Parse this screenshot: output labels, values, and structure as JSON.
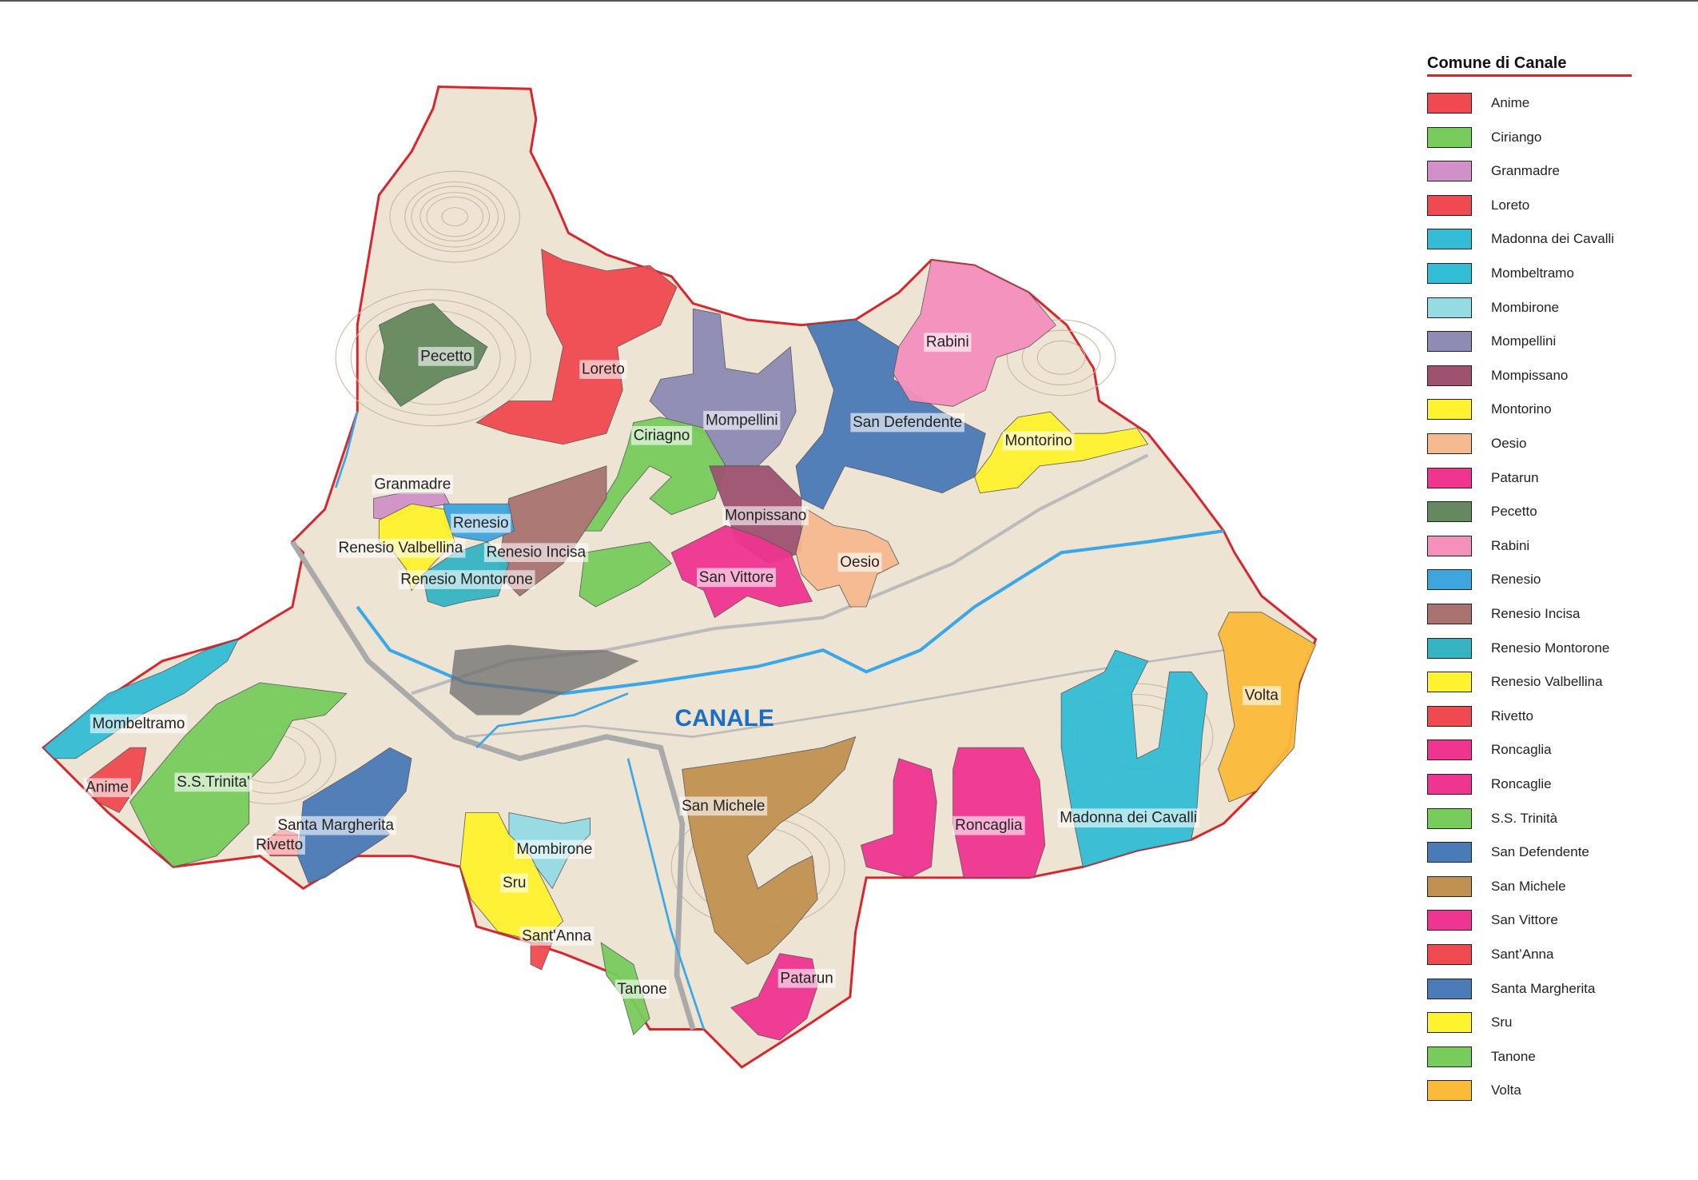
{
  "legend": {
    "title": "Comune di Canale",
    "items": [
      {
        "label": "Anime",
        "color": "#f04a50"
      },
      {
        "label": "Ciriango",
        "color": "#78cc5c"
      },
      {
        "label": "Granmadre",
        "color": "#d191c8"
      },
      {
        "label": "Loreto",
        "color": "#f04a50"
      },
      {
        "label": "Madonna dei Cavalli",
        "color": "#33bcd6"
      },
      {
        "label": "Mombeltramo",
        "color": "#33bcd6"
      },
      {
        "label": "Mombirone",
        "color": "#94dbe3"
      },
      {
        "label": "Mompellini",
        "color": "#8e8bb5"
      },
      {
        "label": "Mompissano",
        "color": "#9e5270"
      },
      {
        "label": "Montorino",
        "color": "#fff22e"
      },
      {
        "label": "Oesio",
        "color": "#f7b98f"
      },
      {
        "label": "Patarun",
        "color": "#ef3590"
      },
      {
        "label": "Pecetto",
        "color": "#64895f"
      },
      {
        "label": "Rabini",
        "color": "#f590bd"
      },
      {
        "label": "Renesio",
        "color": "#3ea5e0"
      },
      {
        "label": "Renesio Incisa",
        "color": "#a97470"
      },
      {
        "label": "Renesio Montorone",
        "color": "#36b4c4"
      },
      {
        "label": "Renesio Valbellina",
        "color": "#fff22e"
      },
      {
        "label": "Rivetto",
        "color": "#f04a50"
      },
      {
        "label": "Roncaglia",
        "color": "#ef3590"
      },
      {
        "label": "Roncaglie",
        "color": "#ef3590"
      },
      {
        "label": "S.S. Trinità",
        "color": "#78cc5c"
      },
      {
        "label": "San Defendente",
        "color": "#4b7ab8"
      },
      {
        "label": "San Michele",
        "color": "#c19151"
      },
      {
        "label": "San Vittore",
        "color": "#ef3590"
      },
      {
        "label": "Sant’Anna",
        "color": "#f04a50"
      },
      {
        "label": "Santa Margherita",
        "color": "#4b7ab8"
      },
      {
        "label": "Sru",
        "color": "#fff22e"
      },
      {
        "label": "Tanone",
        "color": "#78cc5c"
      },
      {
        "label": "Volta",
        "color": "#fbba3a"
      }
    ]
  },
  "map": {
    "town_label": "CANALE",
    "border_color": "#d7262d",
    "terrain_color": "#ede4d3",
    "labels": [
      "Pecetto",
      "Loreto",
      "Ciriagno",
      "Mompellini",
      "San Defendente",
      "Rabini",
      "Montorino",
      "Granmadre",
      "Renesio",
      "Renesio Valbellina",
      "Renesio Incisa",
      "Monpissano",
      "Oesio",
      "San Vittore",
      "Renesio Montorone",
      "Mombeltramo",
      "Anime",
      "S.S.Trinita'",
      "Santa Margherita",
      "Rivetto",
      "San Michele",
      "Mombirone",
      "Sru",
      "Sant'Anna",
      "Tanone",
      "Patarun",
      "Roncaglia",
      "Madonna dei Cavalli",
      "Volta"
    ]
  }
}
